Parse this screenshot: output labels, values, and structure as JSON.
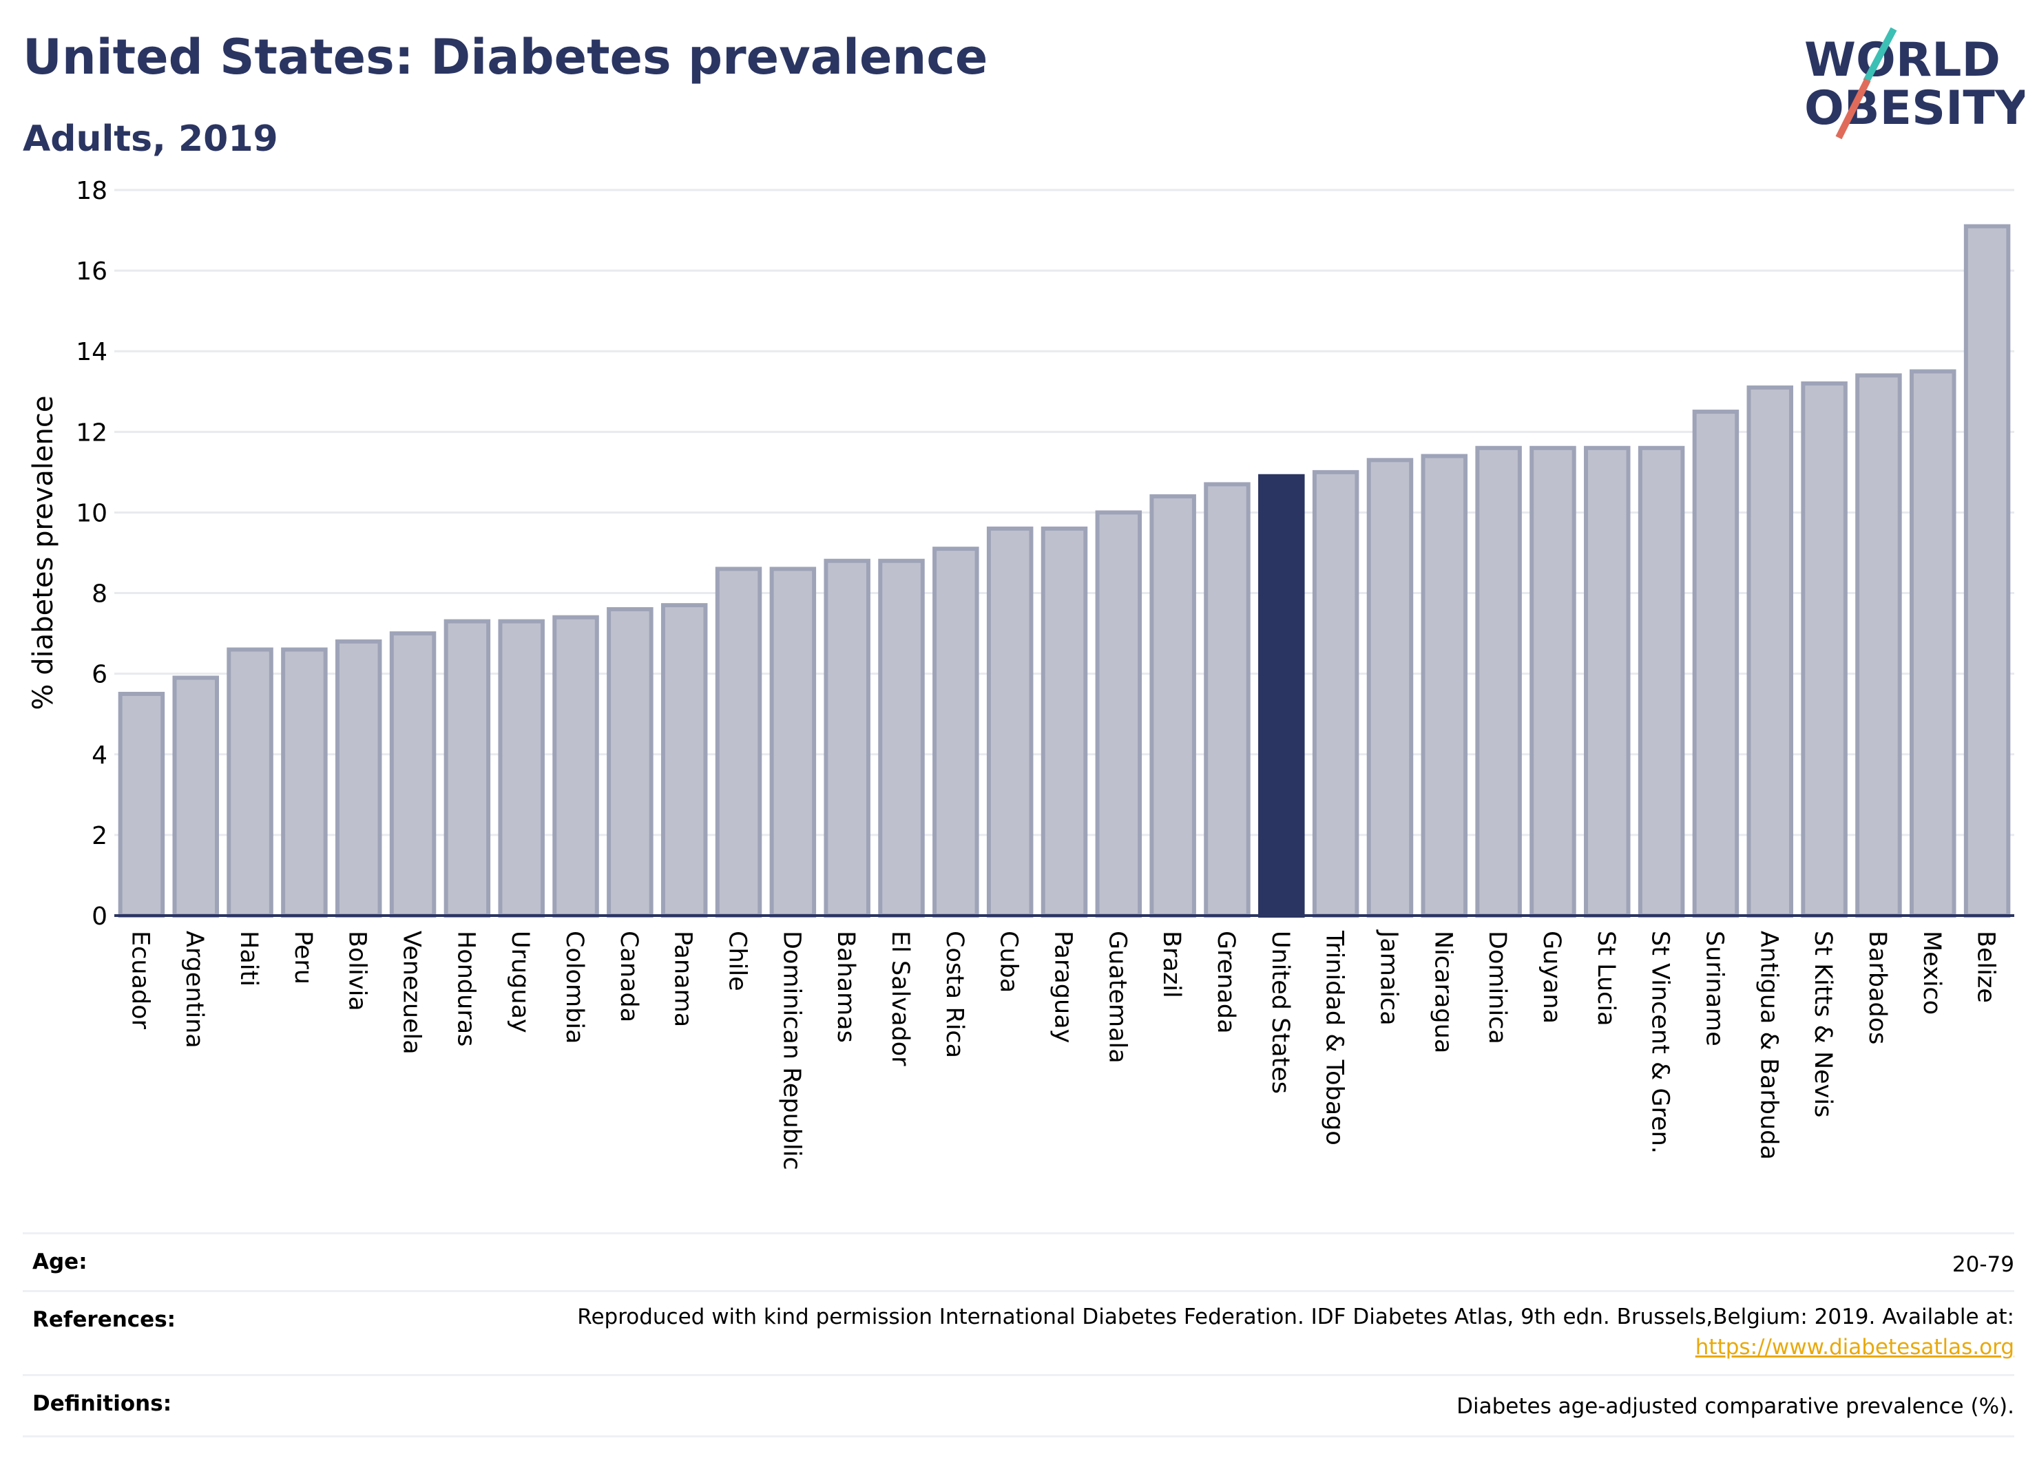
{
  "header": {
    "title": "United States: Diabetes prevalence",
    "subtitle": "Adults, 2019"
  },
  "logo": {
    "line1": "WORLD",
    "line2": "OBESITY",
    "colors": {
      "text": "#2b3562",
      "slash_teal": "#3cbfb4",
      "slash_red": "#e06b5a"
    }
  },
  "chart_data": {
    "type": "bar",
    "title": "United States: Diabetes prevalence",
    "subtitle": "Adults, 2019",
    "xlabel": "",
    "ylabel": "% diabetes prevalence",
    "ylim": [
      0,
      18
    ],
    "yticks": [
      0,
      2,
      4,
      6,
      8,
      10,
      12,
      14,
      16,
      18
    ],
    "grid": true,
    "highlight": "United States",
    "colors": {
      "bar": "#bec1cd",
      "bar_border": "#9ea3b8",
      "highlight": "#2b3562",
      "grid": "#e8eaee",
      "axis": "#2b3562"
    },
    "categories": [
      "Ecuador",
      "Argentina",
      "Haiti",
      "Peru",
      "Bolivia",
      "Venezuela",
      "Honduras",
      "Uruguay",
      "Colombia",
      "Canada",
      "Panama",
      "Chile",
      "Dominican Republic",
      "Bahamas",
      "El Salvador",
      "Costa Rica",
      "Cuba",
      "Paraguay",
      "Guatemala",
      "Brazil",
      "Grenada",
      "United States",
      "Trinidad & Tobago",
      "Jamaica",
      "Nicaragua",
      "Dominica",
      "Guyana",
      "St Lucia",
      "St Vincent & Gren.",
      "Suriname",
      "Antigua & Barbuda",
      "St Kitts & Nevis",
      "Barbados",
      "Mexico",
      "Belize"
    ],
    "values": [
      5.5,
      5.9,
      6.6,
      6.6,
      6.8,
      7.0,
      7.3,
      7.3,
      7.4,
      7.6,
      7.7,
      8.6,
      8.6,
      8.8,
      8.8,
      9.1,
      9.6,
      9.6,
      10.0,
      10.4,
      10.7,
      10.9,
      11.0,
      11.3,
      11.4,
      11.6,
      11.6,
      11.6,
      11.6,
      12.5,
      13.1,
      13.2,
      13.4,
      13.5,
      17.1
    ]
  },
  "info": {
    "age_label": "Age:",
    "age_value": "20-79",
    "references_label": "References:",
    "references_text": "Reproduced with kind permission International Diabetes Federation. IDF Diabetes Atlas, 9th edn. Brussels,Belgium: 2019. Available at:",
    "references_link": "https://www.diabetesatlas.org",
    "definitions_label": "Definitions:",
    "definitions_value": "Diabetes age-adjusted comparative prevalence (%)."
  }
}
